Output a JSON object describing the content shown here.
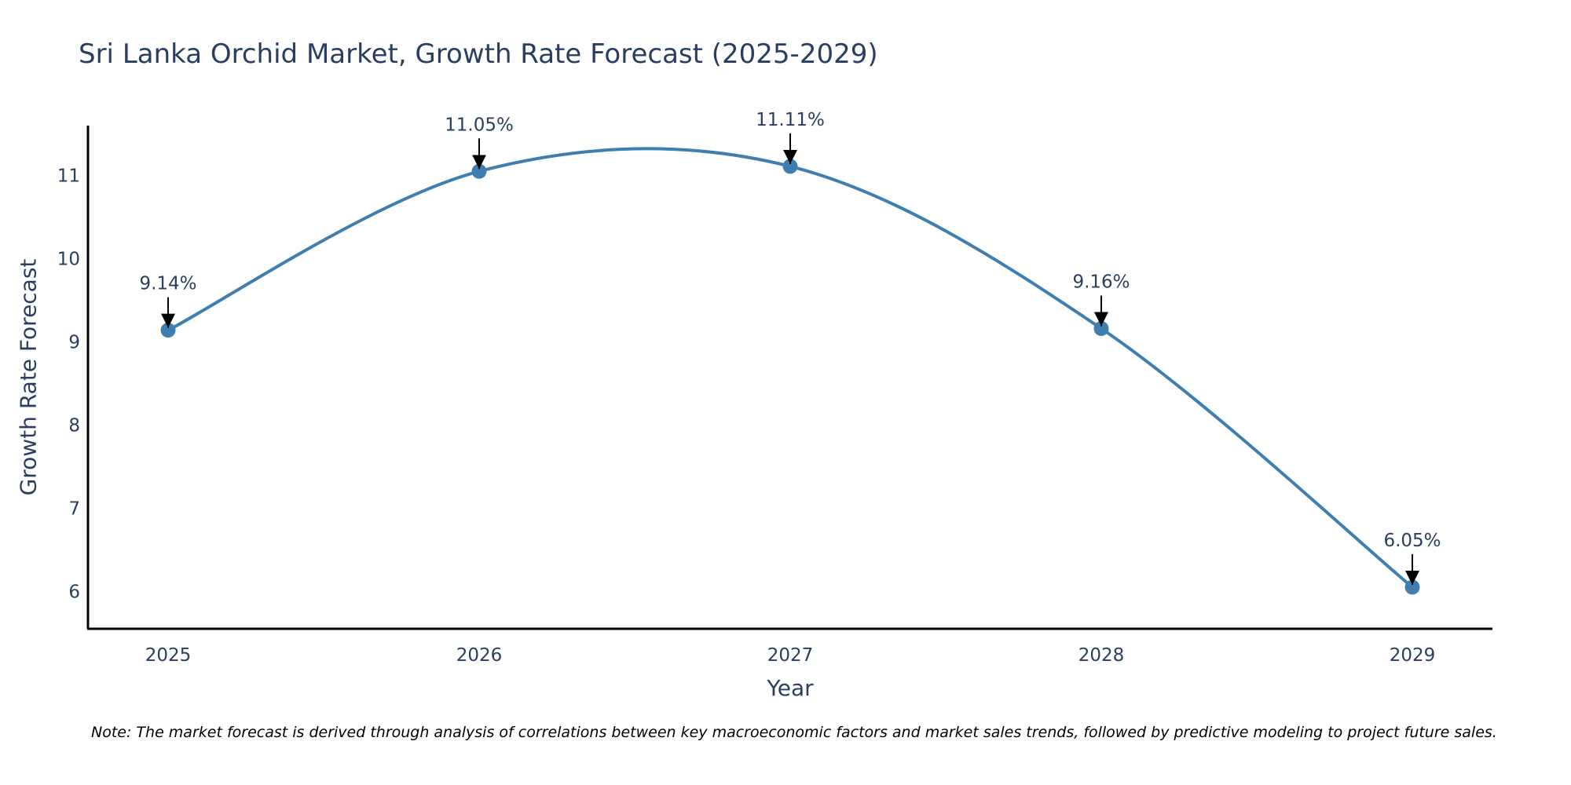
{
  "chart_data": {
    "type": "line",
    "title": "Sri Lanka Orchid Market, Growth Rate Forecast (2025-2029)",
    "xlabel": "Year",
    "ylabel": "Growth Rate Forecast",
    "categories": [
      "2025",
      "2026",
      "2027",
      "2028",
      "2029"
    ],
    "series": [
      {
        "name": "Growth Rate Forecast",
        "values": [
          9.14,
          11.05,
          11.11,
          9.16,
          6.05
        ],
        "data_labels": [
          "9.14%",
          "11.05%",
          "11.11%",
          "9.16%",
          "6.05%"
        ]
      }
    ],
    "yticks": [
      6,
      7,
      8,
      9,
      10,
      11
    ],
    "ylim": [
      5.55,
      11.6
    ],
    "grid": false,
    "line_shape": "spline",
    "note": "Note: The market forecast is derived through analysis of correlations between key macroeconomic factors and market sales trends, followed by predictive modeling to project future sales."
  },
  "colors": {
    "line": "#3f7fb0",
    "marker": "#3f7fb0",
    "axis": "#000000",
    "text": "#2a3f5f",
    "arrow": "#000000"
  }
}
